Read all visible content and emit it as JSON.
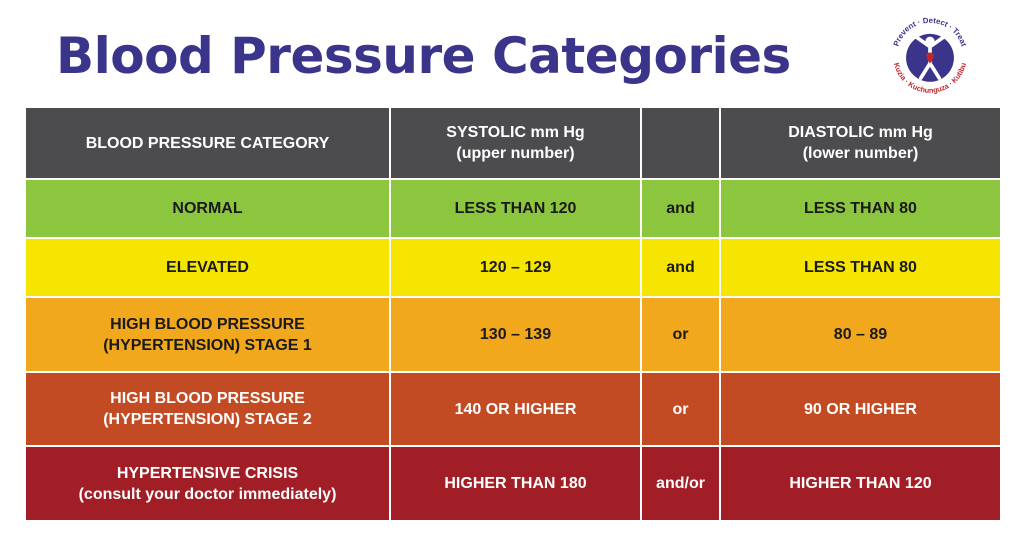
{
  "title": "Blood Pressure Categories",
  "logo": {
    "ring_text_top": "Prevent · Detect · Treat",
    "ring_text_bottom": "Kuzia · Kuchunguza · Kutibu",
    "icon": "person-figure-logo-icon",
    "color_ring": "#3a348a",
    "color_accent": "#c0272d"
  },
  "header": {
    "category": "BLOOD PRESSURE CATEGORY",
    "systolic_line1": "SYSTOLIC mm Hg",
    "systolic_line2": "(upper number)",
    "connector": "",
    "diastolic_line1": "DIASTOLIC mm Hg",
    "diastolic_line2": "(lower number)",
    "color": "#4c4c4e"
  },
  "rows": [
    {
      "category_line1": "NORMAL",
      "category_line2": "",
      "systolic": "LESS THAN 120",
      "connector": "and",
      "diastolic": "LESS THAN 80",
      "color": "#8cc63f",
      "text_color": "#1a1a1a"
    },
    {
      "category_line1": "ELEVATED",
      "category_line2": "",
      "systolic": "120 – 129",
      "connector": "and",
      "diastolic": "LESS THAN 80",
      "color": "#f6e500",
      "text_color": "#1a1a1a"
    },
    {
      "category_line1": "HIGH BLOOD PRESSURE",
      "category_line2": "(HYPERTENSION) STAGE 1",
      "systolic": "130 – 139",
      "connector": "or",
      "diastolic": "80 – 89",
      "color": "#f2a81d",
      "text_color": "#1a1a1a"
    },
    {
      "category_line1": "HIGH BLOOD PRESSURE",
      "category_line2": "(HYPERTENSION) STAGE 2",
      "systolic": "140 OR HIGHER",
      "connector": "or",
      "diastolic": "90 OR HIGHER",
      "color": "#c24b24",
      "text_color": "#ffffff"
    },
    {
      "category_line1": "HYPERTENSIVE CRISIS",
      "category_line2": "(consult your doctor immediately)",
      "systolic": "HIGHER THAN 180",
      "connector": "and/or",
      "diastolic": "HIGHER THAN 120",
      "color": "#a21e26",
      "text_color": "#ffffff"
    }
  ]
}
